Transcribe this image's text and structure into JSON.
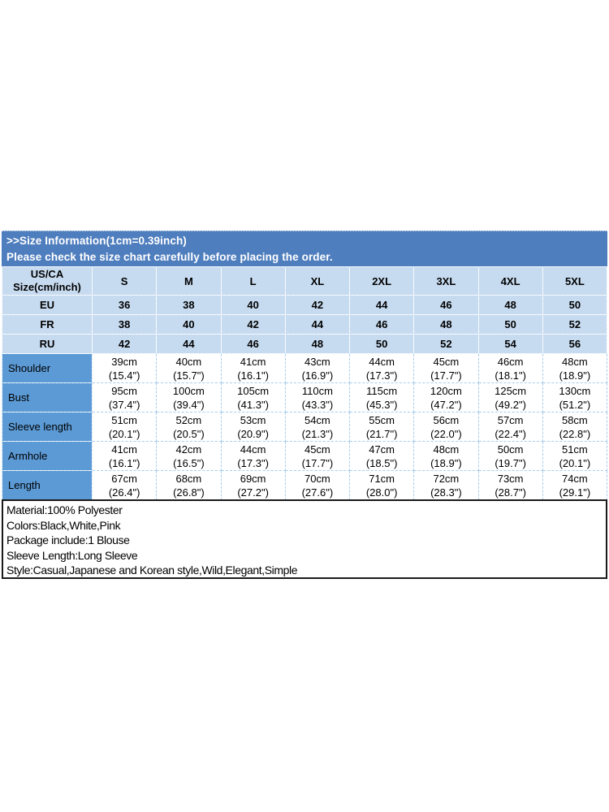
{
  "header": {
    "title": ">>Size Information(1cm=0.39inch)",
    "subtitle": "Please check the size chart carefully before placing the order."
  },
  "table": {
    "corner": {
      "line1": "US/CA",
      "line2": "Size(cm/inch)"
    },
    "sizes": [
      "S",
      "M",
      "L",
      "XL",
      "2XL",
      "3XL",
      "4XL",
      "5XL"
    ],
    "region_rows": [
      {
        "label": "EU",
        "values": [
          "36",
          "38",
          "40",
          "42",
          "44",
          "46",
          "48",
          "50"
        ]
      },
      {
        "label": "FR",
        "values": [
          "38",
          "40",
          "42",
          "44",
          "46",
          "48",
          "50",
          "52"
        ]
      },
      {
        "label": "RU",
        "values": [
          "42",
          "44",
          "46",
          "48",
          "50",
          "52",
          "54",
          "56"
        ]
      }
    ],
    "measurement_rows": [
      {
        "label": "Shoulder",
        "cm": [
          "39cm",
          "40cm",
          "41cm",
          "43cm",
          "44cm",
          "45cm",
          "46cm",
          "48cm"
        ],
        "inch": [
          "(15.4\")",
          "(15.7\")",
          "(16.1\")",
          "(16.9\")",
          "(17.3\")",
          "(17.7\")",
          "(18.1\")",
          "(18.9\")"
        ]
      },
      {
        "label": "Bust",
        "cm": [
          "95cm",
          "100cm",
          "105cm",
          "110cm",
          "115cm",
          "120cm",
          "125cm",
          "130cm"
        ],
        "inch": [
          "(37.4\")",
          "(39.4\")",
          "(41.3\")",
          "(43.3\")",
          "(45.3\")",
          "(47.2\")",
          "(49.2\")",
          "(51.2\")"
        ]
      },
      {
        "label": "Sleeve length",
        "cm": [
          "51cm",
          "52cm",
          "53cm",
          "54cm",
          "55cm",
          "56cm",
          "57cm",
          "58cm"
        ],
        "inch": [
          "(20.1\")",
          "(20.5\")",
          "(20.9\")",
          "(21.3\")",
          "(21.7\")",
          "(22.0\")",
          "(22.4\")",
          "(22.8\")"
        ]
      },
      {
        "label": "Armhole",
        "cm": [
          "41cm",
          "42cm",
          "44cm",
          "45cm",
          "47cm",
          "48cm",
          "50cm",
          "51cm"
        ],
        "inch": [
          "(16.1\")",
          "(16.5\")",
          "(17.3\")",
          "(17.7\")",
          "(18.5\")",
          "(18.9\")",
          "(19.7\")",
          "(20.1\")"
        ]
      },
      {
        "label": "Length",
        "cm": [
          "67cm",
          "68cm",
          "69cm",
          "70cm",
          "71cm",
          "72cm",
          "73cm",
          "74cm"
        ],
        "inch": [
          "(26.4\")",
          "(26.8\")",
          "(27.2\")",
          "(27.6\")",
          "(28.0\")",
          "(28.3\")",
          "(28.7\")",
          "(29.1\")"
        ]
      }
    ]
  },
  "product_info": {
    "lines": [
      "Material:100% Polyester",
      "Colors:Black,White,Pink",
      "Package include:1 Blouse",
      "Sleeve Length:Long Sleeve",
      "Style:Casual,Japanese and Korean style,Wild,Elegant,Simple"
    ]
  },
  "colors": {
    "band_blue": "#4F7EBE",
    "light_blue": "#C7DBF0",
    "label_blue": "#5B9AD5",
    "cell_white": "#FFFFFF",
    "info_border": "#1A1A1A",
    "text": "#000000"
  }
}
